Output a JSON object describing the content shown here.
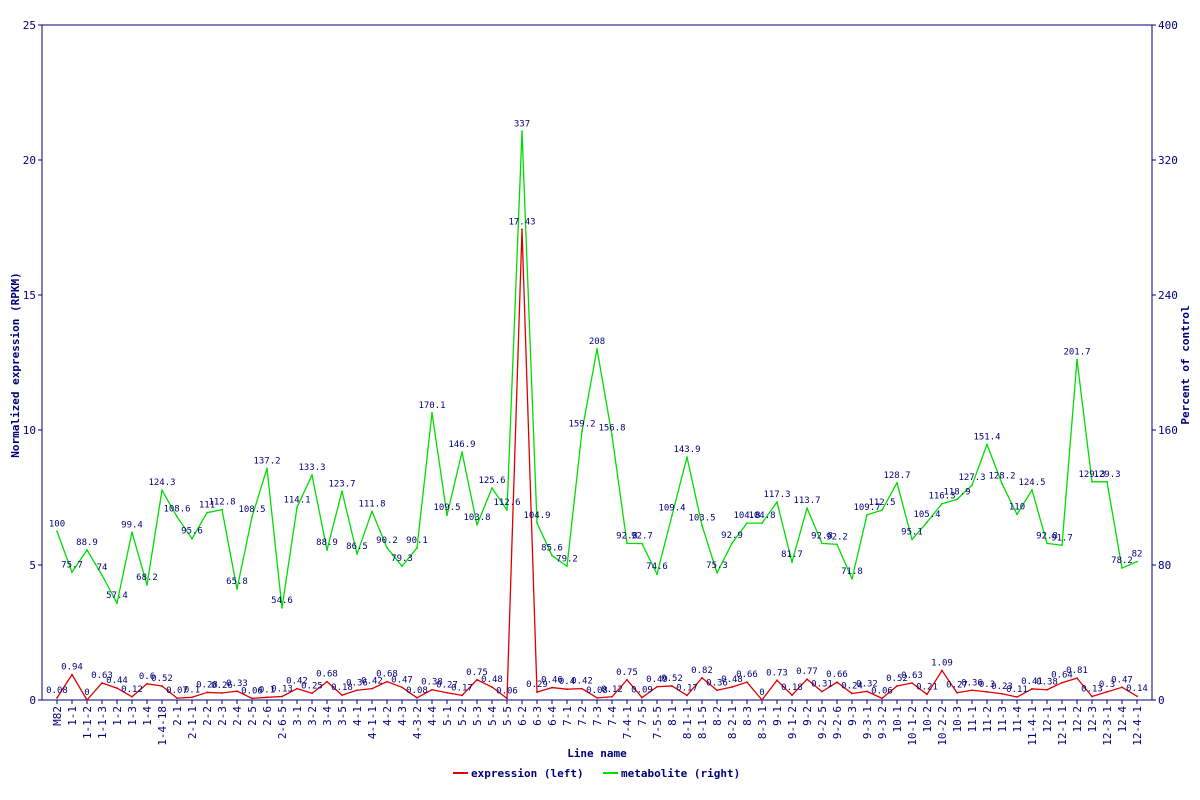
{
  "chart_data": {
    "type": "line",
    "xlabel": "Line name",
    "ylabel_left": "Normalized expression (RPKM)",
    "ylabel_right": "Percent of control",
    "ylim_left": [
      0,
      25
    ],
    "ylim_right": [
      0,
      400
    ],
    "yticks_left": [
      "0",
      "5",
      "10",
      "15",
      "20",
      "25"
    ],
    "yticks_right": [
      "0",
      "80",
      "160",
      "240",
      "320",
      "400"
    ],
    "grid": false,
    "legend_position": "bottom-center",
    "categories": [
      "M82",
      "1-1",
      "1-1-2",
      "1-1-3",
      "1-2",
      "1-3",
      "1-4",
      "1-4-18",
      "2-1",
      "2-1-1",
      "2-2",
      "2-3",
      "2-4",
      "2-5",
      "2-6",
      "2-6-5",
      "3-1",
      "3-2",
      "3-4",
      "3-5",
      "4-1",
      "4-1-1",
      "4-2",
      "4-3",
      "4-3-2",
      "4-4",
      "5-1",
      "5-2",
      "5-3",
      "5-4",
      "5-5",
      "6-2",
      "6-3",
      "6-4",
      "7-1",
      "7-2",
      "7-3",
      "7-4",
      "7-4-1",
      "7-5",
      "7-5-5",
      "8-1",
      "8-1-1",
      "8-1-5",
      "8-2",
      "8-2-1",
      "8-3",
      "8-3-1",
      "9-1",
      "9-1-2",
      "9-2",
      "9-2-5",
      "9-2-6",
      "9-3",
      "9-3-1",
      "9-3-2",
      "10-1",
      "10-1-2",
      "10-2",
      "10-2-2",
      "10-3",
      "11-1",
      "11-2",
      "11-3",
      "11-4",
      "11-4-1",
      "12-1",
      "12-1-1",
      "12-2",
      "12-3",
      "12-3-1",
      "12-4",
      "12-4-1"
    ],
    "series": [
      {
        "name": "expression (left)",
        "axis": "left",
        "color": "#dd0000",
        "values": [
          0.08,
          0.94,
          0,
          0.63,
          0.44,
          0.12,
          0.6,
          0.52,
          0.07,
          0.1,
          0.28,
          0.26,
          0.33,
          0.06,
          0.1,
          0.13,
          0.42,
          0.25,
          0.68,
          0.18,
          0.36,
          0.42,
          0.68,
          0.47,
          0.08,
          0.38,
          0.27,
          0.17,
          0.75,
          0.48,
          0.06,
          17.43,
          0.29,
          0.46,
          0.4,
          0.42,
          0.08,
          0.12,
          0.75,
          0.09,
          0.49,
          0.52,
          0.17,
          0.82,
          0.36,
          0.48,
          0.66,
          0,
          0.73,
          0.18,
          0.77,
          0.31,
          0.66,
          0.24,
          0.32,
          0.06,
          0.52,
          0.63,
          0.21,
          1.09,
          0.27,
          0.36,
          0.3,
          0.23,
          0.11,
          0.41,
          0.38,
          0.64,
          0.81,
          0.13,
          0.3,
          0.47,
          0.14
        ],
        "labels": [
          "0.08",
          "0.94",
          "0",
          "0.63",
          "0.44",
          "0.12",
          "0.6",
          "0.52",
          "0.07",
          "0.1",
          "0.28",
          "0.26",
          "0.33",
          "0.06",
          "0.1",
          "0.13",
          "0.42",
          "0.25",
          "0.68",
          "0.18",
          "0.36",
          "0.42",
          "0.68",
          "0.47",
          "0.08",
          "0.38",
          "0.27",
          "0.17",
          "0.75",
          "0.48",
          "0.06",
          "17.43",
          "0.29",
          "0.46",
          "0.4",
          "0.42",
          "0.08",
          "0.12",
          "0.75",
          "0.09",
          "0.49",
          "0.52",
          "0.17",
          "0.82",
          "0.36",
          "0.48",
          "0.66",
          "0",
          "0.73",
          "0.18",
          "0.77",
          "0.31",
          "0.66",
          "0.24",
          "0.32",
          "0.06",
          "0.52",
          "0.63",
          "0.21",
          "1.09",
          "0.27",
          "0.36",
          "0.3",
          "0.23",
          "0.11",
          "0.41",
          "0.38",
          "0.64",
          "0.81",
          "0.13",
          "0.3",
          "0.47",
          "0.14"
        ]
      },
      {
        "name": "metabolite (right)",
        "axis": "right",
        "color": "#00dd00",
        "values": [
          100,
          75.7,
          88.9,
          74,
          57.4,
          99.4,
          68.2,
          124.3,
          108.6,
          95.6,
          111,
          112.8,
          65.8,
          108.5,
          137.2,
          54.6,
          114.1,
          133.3,
          88.9,
          123.7,
          86.5,
          111.8,
          90.2,
          79.3,
          90.1,
          170.1,
          109.5,
          146.9,
          103.8,
          125.6,
          112.6,
          337,
          104.9,
          85.6,
          79.2,
          159.2,
          208,
          156.8,
          92.8,
          92.7,
          74.6,
          109.4,
          143.9,
          103.5,
          75.3,
          92.9,
          104.8,
          104.8,
          117.3,
          81.7,
          113.7,
          92.8,
          92.2,
          71.8,
          109.7,
          112.5,
          128.7,
          95.1,
          105.4,
          116.3,
          118.9,
          127.3,
          151.4,
          128.2,
          110,
          124.5,
          92.8,
          91.7,
          201.7,
          129.3,
          129.3,
          78.2,
          82
        ],
        "labels": [
          "100",
          "75.7",
          "88.9",
          "74",
          "57.4",
          "99.4",
          "68.2",
          "124.3",
          "108.6",
          "95.6",
          "111",
          "112.8",
          "65.8",
          "108.5",
          "137.2",
          "54.6",
          "114.1",
          "133.3",
          "88.9",
          "123.7",
          "86.5",
          "111.8",
          "90.2",
          "79.3",
          "90.1",
          "170.1",
          "109.5",
          "146.9",
          "103.8",
          "125.6",
          "112.6",
          "337",
          "104.9",
          "85.6",
          "79.2",
          "159.2",
          "208",
          "156.8",
          "92.8",
          "92.7",
          "74.6",
          "109.4",
          "143.9",
          "103.5",
          "75.3",
          "92.9",
          "104.8",
          "104.8",
          "117.3",
          "81.7",
          "113.7",
          "92.8",
          "92.2",
          "71.8",
          "109.7",
          "112.5",
          "128.7",
          "95.1",
          "105.4",
          "116.3",
          "118.9",
          "127.3",
          "151.4",
          "128.2",
          "110",
          "124.5",
          "92.8",
          "91.7",
          "201.7",
          "129.3",
          "129.3",
          "78.2",
          "82"
        ]
      }
    ]
  }
}
